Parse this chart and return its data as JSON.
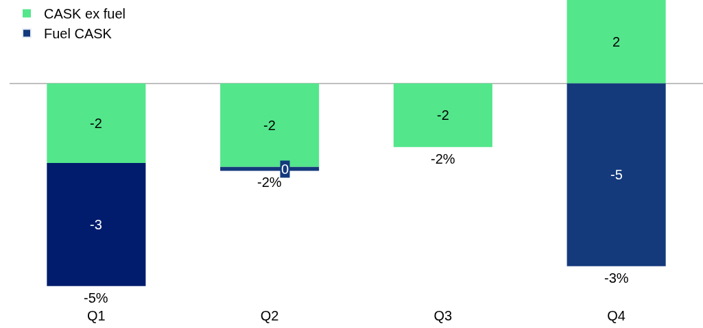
{
  "chart_data": {
    "type": "bar",
    "stacked": true,
    "categories": [
      "Q1",
      "Q2",
      "Q3",
      "Q4"
    ],
    "series": [
      {
        "name": "CASK ex fuel",
        "color": "#53e68b",
        "values": [
          -2.0,
          -2.1,
          -1.6,
          2.1
        ],
        "value_labels": [
          "-2",
          "-2",
          "-2",
          "2"
        ]
      },
      {
        "name": "Fuel CASK",
        "color": "#143a7c",
        "colors": [
          "#011c6c",
          "#143a7c",
          "#143a7c",
          "#143a7c"
        ],
        "values": [
          -3.1,
          -0.1,
          null,
          -4.6
        ],
        "value_labels": [
          "-3",
          "0",
          null,
          "-5"
        ]
      }
    ],
    "totals": [
      "-5%",
      "-2%",
      "-2%",
      "-3%"
    ],
    "tick_labels": "x",
    "legend": "top left"
  }
}
